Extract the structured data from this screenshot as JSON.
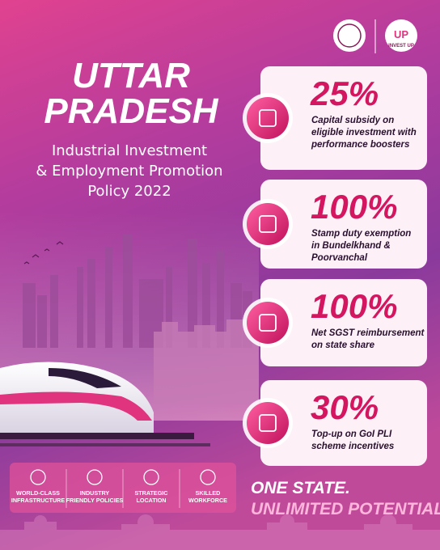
{
  "header": {
    "title_lines": [
      "UTTAR",
      "PRADESH"
    ],
    "subtitle_lines": [
      "Industrial Investment",
      "& Employment Promotion",
      "Policy 2022"
    ],
    "logo_text": "INVEST UP"
  },
  "cards": [
    {
      "number": "25%",
      "lines": [
        "Capital subsidy on",
        "eligible investment with",
        "performance boosters"
      ]
    },
    {
      "number": "100%",
      "lines": [
        "Stamp duty exemption",
        "in Bundelkhand &",
        "Poorvanchal"
      ]
    },
    {
      "number": "100%",
      "lines": [
        "Net SGST reimbursement",
        "on state share"
      ]
    },
    {
      "number": "30%",
      "lines": [
        "Top-up on GoI PLI",
        "scheme incentives"
      ]
    }
  ],
  "features": [
    {
      "lines": [
        "WORLD-CLASS",
        "INFRASTRUCTURE"
      ]
    },
    {
      "lines": [
        "INDUSTRY",
        "FRIENDLY POLICIES"
      ]
    },
    {
      "lines": [
        "STRATEGIC",
        "LOCATION"
      ]
    },
    {
      "lines": [
        "SKILLED",
        "WORKFORCE"
      ]
    }
  ],
  "tagline": {
    "line1": "ONE STATE.",
    "line2": "UNLIMITED POTENTIAL."
  }
}
